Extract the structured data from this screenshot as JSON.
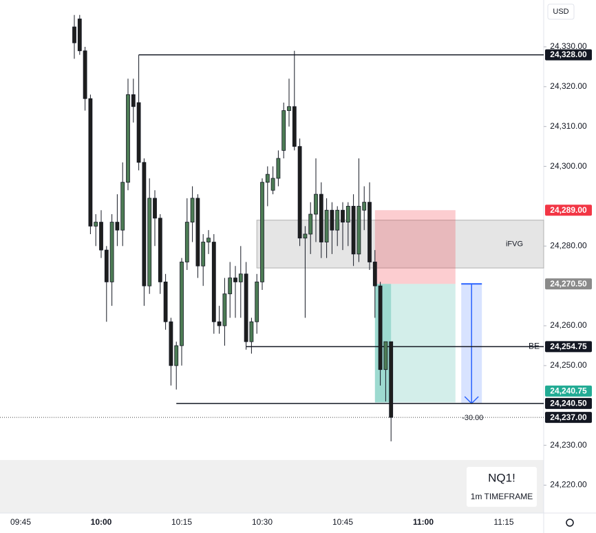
{
  "chart_data": {
    "type": "candlestick",
    "currency": "USD",
    "x": [
      "09:55",
      "09:56",
      "09:57",
      "09:58",
      "09:59",
      "10:00",
      "10:01",
      "10:02",
      "10:03",
      "10:04",
      "10:05",
      "10:06",
      "10:07",
      "10:08",
      "10:09",
      "10:10",
      "10:11",
      "10:12",
      "10:13",
      "10:14",
      "10:15",
      "10:16",
      "10:17",
      "10:18",
      "10:19",
      "10:20",
      "10:21",
      "10:22",
      "10:23",
      "10:24",
      "10:25",
      "10:26",
      "10:27",
      "10:28",
      "10:29",
      "10:30",
      "10:31",
      "10:32",
      "10:33",
      "10:34",
      "10:35",
      "10:36",
      "10:37",
      "10:38",
      "10:39",
      "10:40",
      "10:41",
      "10:42",
      "10:43",
      "10:44",
      "10:45",
      "10:46",
      "10:47",
      "10:48",
      "10:49",
      "10:50",
      "10:51",
      "10:52",
      "10:53",
      "10:54"
    ],
    "open": [
      24335,
      24337,
      24329,
      24317,
      24285,
      24286,
      24279,
      24271,
      24286,
      24284,
      24296,
      24318,
      24316,
      24301,
      24270,
      24292,
      24287,
      24271,
      24261,
      24250,
      24255,
      24276,
      24286,
      24292,
      24275,
      24281,
      24281,
      24261,
      24260,
      24268,
      24272,
      24271,
      24273,
      24256,
      24261,
      24271,
      24296,
      24294,
      24297,
      24304,
      24314,
      24315,
      24305,
      24282,
      24283,
      24288,
      24293,
      24281,
      24289,
      24284,
      24289,
      24286,
      24290,
      24278,
      24289,
      24291,
      24276,
      24270,
      24249,
      24256
    ],
    "close": [
      24331,
      24329,
      24317,
      24285,
      24286,
      24279,
      24271,
      24286,
      24284,
      24296,
      24318,
      24315,
      24301,
      24270,
      24292,
      24287,
      24271,
      24261,
      24250,
      24255,
      24276,
      24286,
      24292,
      24275,
      24281,
      24282,
      24261,
      24260,
      24268,
      24272,
      24271,
      24273,
      24256,
      24261,
      24271,
      24296,
      24298,
      24297,
      24302,
      24314,
      24315,
      24305,
      24282,
      24283,
      24288,
      24293,
      24281,
      24289,
      24284,
      24289,
      24286,
      24290,
      24278,
      24290,
      24291,
      24276,
      24270,
      24249,
      24256,
      24237
    ],
    "high": [
      24338,
      24338,
      24330,
      24318,
      24288,
      24289,
      24280,
      24288,
      24293,
      24301,
      24322,
      24322,
      24328,
      24302,
      24297,
      24294,
      24288,
      24273,
      24262,
      24256,
      24277,
      24292,
      24295,
      24293,
      24283,
      24284,
      24283,
      24265,
      24272,
      24276,
      24275,
      24280,
      24276,
      24262,
      24273,
      24297,
      24300,
      24300,
      24304,
      24316,
      24322,
      24329,
      24307,
      24285,
      24291,
      24302,
      24296,
      24292,
      24291,
      24290,
      24291,
      24291,
      24293,
      24302,
      24295,
      24296,
      24279,
      24271,
      24256,
      24256
    ],
    "low": [
      24327,
      24328,
      24314,
      24283,
      24280,
      24277,
      24261,
      24265,
      24280,
      24280,
      24294,
      24311,
      24299,
      24265,
      24268,
      24280,
      24268,
      24259,
      24245,
      24244,
      24250,
      24274,
      24281,
      24272,
      24270,
      24278,
      24258,
      24258,
      24255,
      24262,
      24262,
      24262,
      24254,
      24253,
      24258,
      24269,
      24290,
      24293,
      24295,
      24302,
      24310,
      24304,
      24280,
      24262,
      24278,
      24281,
      24277,
      24277,
      24278,
      24280,
      24279,
      24280,
      24275,
      24276,
      24284,
      24274,
      24262,
      24245,
      24241,
      24231
    ],
    "bull_color": "#4d7c55",
    "bear_color": "#1e1e1e",
    "ylim": [
      24213,
      24341.75
    ],
    "yticks": [
      {
        "value": 24330,
        "label": "24,330.00"
      },
      {
        "value": 24320,
        "label": "24,320.00"
      },
      {
        "value": 24310,
        "label": "24,310.00"
      },
      {
        "value": 24300,
        "label": "24,300.00"
      },
      {
        "value": 24280,
        "label": "24,280.00"
      },
      {
        "value": 24260,
        "label": "24,260.00"
      },
      {
        "value": 24250,
        "label": "24,250.00"
      },
      {
        "value": 24230,
        "label": "24,230.00"
      },
      {
        "value": 24220,
        "label": "24,220.00"
      }
    ],
    "xticks": [
      "09:45",
      "10:00",
      "10:15",
      "10:30",
      "10:45",
      "11:00",
      "11:15"
    ],
    "levels": [
      {
        "value": 24328,
        "from": "10:07"
      },
      {
        "value": 24254.75,
        "from": "10:27",
        "label": "BE"
      },
      {
        "value": 24240.5,
        "from": "10:14"
      }
    ],
    "last_price": 24237,
    "zone": {
      "label": "iFVG",
      "top": 24286.5,
      "bottom": 24274.5,
      "from": "10:29"
    },
    "position": {
      "entry": 24270.5,
      "stop": 24289,
      "target": 24240.75,
      "from": "10:51",
      "to": "11:06"
    },
    "measure": {
      "from": 24270.5,
      "to": 24240.5,
      "at": "11:09",
      "value": -30,
      "label": "-30.00"
    },
    "price_tags": [
      {
        "value": 24328,
        "label": "24,328.00",
        "color": "#131722"
      },
      {
        "value": 24289,
        "label": "24,289.00",
        "color": "#f23645"
      },
      {
        "value": 24270.5,
        "label": "24,270.50",
        "color": "#8a8a8a"
      },
      {
        "value": 24254.75,
        "label": "24,254.75",
        "color": "#131722"
      },
      {
        "value": 24240.75,
        "label": "24,240.75",
        "color": "#22ab94"
      },
      {
        "value": 24240.5,
        "label": "24,240.50",
        "color": "#131722"
      },
      {
        "value": 24237,
        "label": "24,237.00",
        "color": "#131722"
      }
    ],
    "watermark": {
      "symbol": "NQ1!",
      "timeframe": "1m TIMEFRAME"
    }
  }
}
